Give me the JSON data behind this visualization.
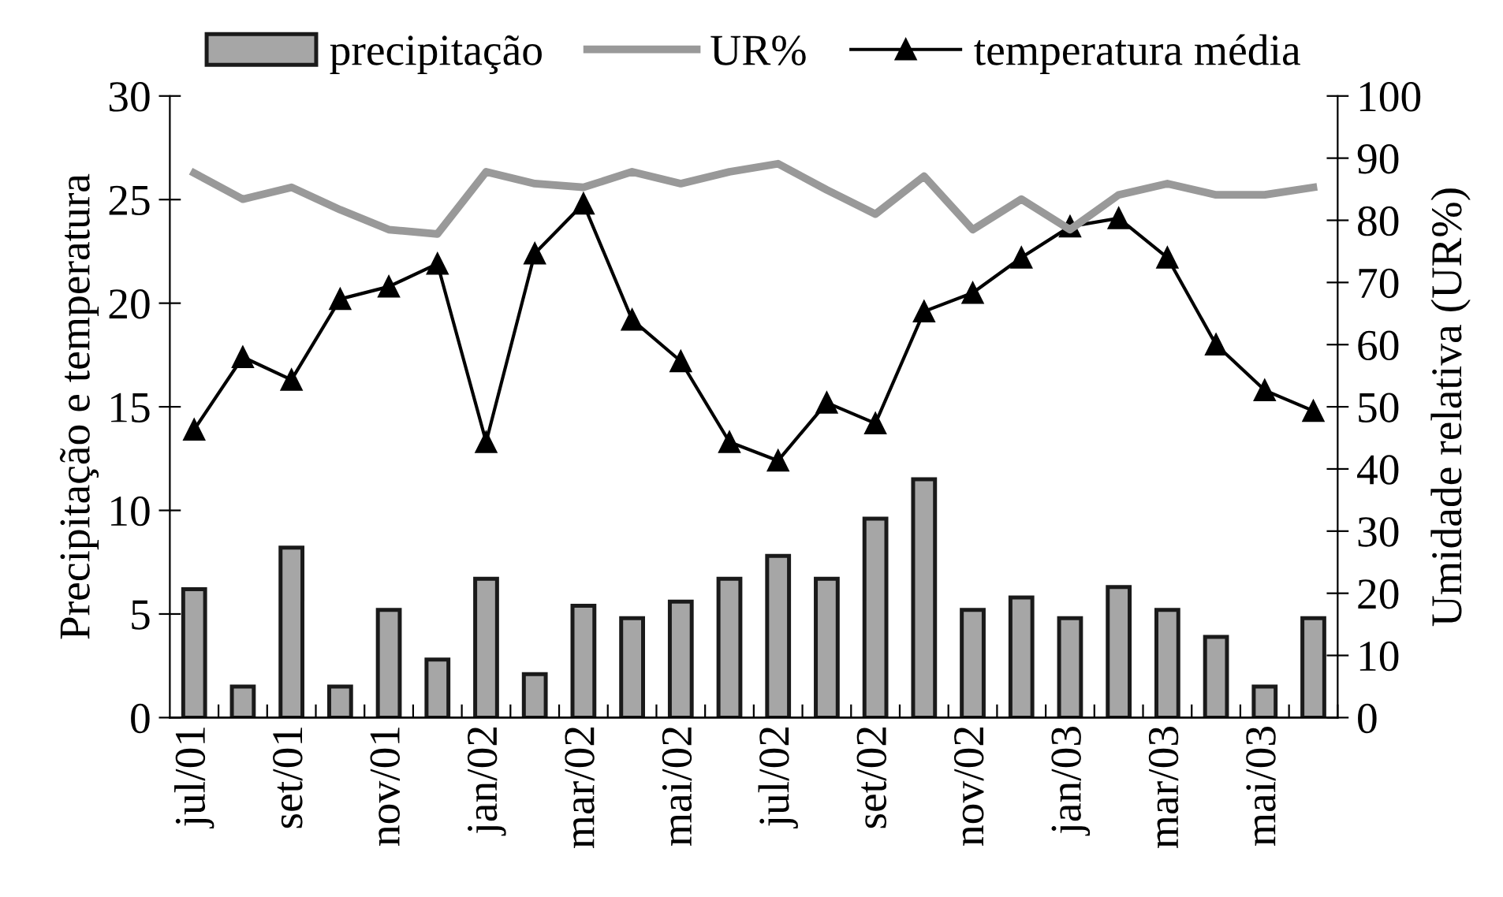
{
  "chart_data": {
    "type": "bar",
    "categories": [
      "jul/01",
      null,
      "set/01",
      null,
      "nov/01",
      null,
      "jan/02",
      null,
      "mar/02",
      null,
      "mai/02",
      null,
      "jul/02",
      null,
      "set/02",
      null,
      "nov/02",
      null,
      "jan/03",
      null,
      "mar/03",
      null,
      "mai/03",
      null
    ],
    "ylabel": "Precipitação e temperatura",
    "y2label": "Umidade relativa (UR%)",
    "series": [
      {
        "name": "precipitação",
        "color": "#a6a6a6",
        "values": [
          6.2,
          1.5,
          8.2,
          1.5,
          5.2,
          2.8,
          6.7,
          2.1,
          5.4,
          4.8,
          5.6,
          6.7,
          7.8,
          6.7,
          9.6,
          11.5,
          5.2,
          5.8,
          4.8,
          6.3,
          5.2,
          3.9,
          1.5,
          4.8
        ]
      },
      {
        "name": "UR%",
        "type": "line",
        "axis": "y2",
        "color": "#999999",
        "marker": "none",
        "values": [
          87.6,
          83.4,
          85.3,
          81.7,
          78.5,
          77.8,
          87.8,
          85.9,
          85.3,
          87.8,
          85.9,
          87.8,
          89.1,
          84.9,
          81.0,
          87.1,
          78.5,
          83.4,
          78.5,
          84.1,
          85.9,
          84.1,
          84.1,
          85.3
        ]
      },
      {
        "name": "temperatura média",
        "type": "line",
        "color": "#000000",
        "marker": "triangle",
        "values": [
          13.9,
          17.4,
          16.3,
          20.2,
          20.8,
          21.9,
          13.3,
          22.4,
          24.8,
          19.2,
          17.2,
          13.3,
          12.4,
          15.2,
          14.2,
          19.6,
          20.5,
          22.2,
          23.7,
          24.1,
          22.2,
          18.0,
          15.8,
          14.8
        ]
      }
    ],
    "ylim": [
      0,
      30
    ],
    "yticks": [
      0,
      5,
      10,
      15,
      20,
      25,
      30
    ],
    "y2lim": [
      0,
      100
    ],
    "y2ticks": [
      0,
      10,
      20,
      30,
      40,
      50,
      60,
      70,
      80,
      90,
      100
    ],
    "legend": "top",
    "grid": false
  }
}
